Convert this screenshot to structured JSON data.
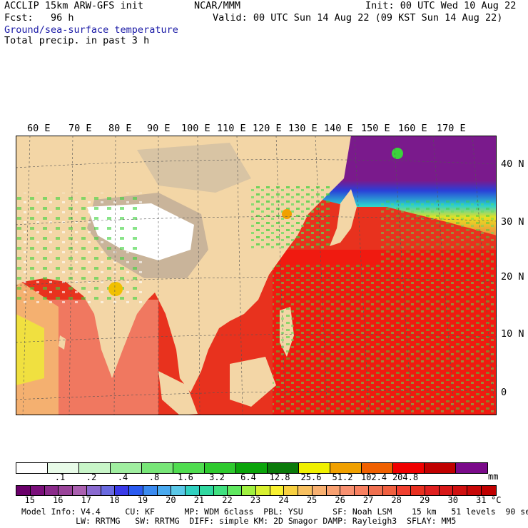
{
  "header": {
    "model": "ACCLIP 15km ARW-GFS init",
    "center": "NCAR/MMM",
    "init": "Init: 00 UTC Wed 10 Aug 22",
    "fcst": "Fcst:   96 h",
    "valid": "Valid: 00 UTC Sun 14 Aug 22 (09 KST Sun 14 Aug 22)",
    "field1": "Ground/sea-surface temperature",
    "field2": "Total precip. in past 3 h"
  },
  "map": {
    "lon_labels": [
      "60 E",
      "70 E",
      "80 E",
      "90 E",
      "100 E",
      "110 E",
      "120 E",
      "130 E",
      "140 E",
      "150 E",
      "160 E",
      "170 E"
    ],
    "lat_labels": [
      "40 N",
      "30 N",
      "20 N",
      "10 N",
      "0"
    ],
    "colors": {
      "land": "#f3d6a6",
      "desert": "#c9b49a",
      "snow": "#ffffff",
      "ocean_warm": "#e8321e",
      "ocean_hot": "#f01010",
      "ocean_cool": "#f08060",
      "rain": "#3bd23b",
      "cold_purple": "#7a1a8c",
      "cold_blue": "#2a3fd8",
      "cold_cyan": "#2ad0d0",
      "cold_yellow": "#e8e020"
    }
  },
  "precip_scale": {
    "ticks": [
      ".1",
      ".2",
      ".4",
      ".8",
      "1.6",
      "3.2",
      "6.4",
      "12.8",
      "25.6",
      "51.2",
      "102.4",
      "204.8"
    ],
    "unit": "mm",
    "colors": [
      "#ffffff",
      "#e8fbe8",
      "#c8f5c8",
      "#a0eea0",
      "#78e678",
      "#50dc50",
      "#2ec92e",
      "#0aa40a",
      "#0a7a0a",
      "#f0f000",
      "#f0a000",
      "#f06000",
      "#f00000",
      "#c00000",
      "#7a0a8a"
    ]
  },
  "temp_scale": {
    "ticks": [
      "15",
      "16",
      "17",
      "18",
      "19",
      "20",
      "21",
      "22",
      "23",
      "24",
      "25",
      "26",
      "27",
      "28",
      "29",
      "30",
      "31"
    ],
    "unit": "°C",
    "colors": [
      "#6a006a",
      "#7a0f7a",
      "#8a2a8a",
      "#9a449a",
      "#aa60b0",
      "#8a6ad0",
      "#6a6ae0",
      "#3a3ae8",
      "#2a5af0",
      "#3a8af0",
      "#4aaaf0",
      "#5ac8e8",
      "#30d0c0",
      "#30d8a0",
      "#40e080",
      "#60e860",
      "#a0f040",
      "#d8f030",
      "#f8f030",
      "#f8d040",
      "#f8c060",
      "#f8b070",
      "#f8a070",
      "#f89070",
      "#f88060",
      "#f07050",
      "#f06040",
      "#f04030",
      "#e83020",
      "#e02020",
      "#d81818",
      "#d01010",
      "#c80808",
      "#c00000"
    ]
  },
  "footer": {
    "line1": "Model Info: V4.4     CU: KF      MP: WDM 6class  PBL: YSU      SF: Noah LSM    15 km   51 levels  90 sec",
    "line2": "           LW: RRTMG   SW: RRTMG  DIFF: simple KM: 2D Smagor DAMP: Rayleigh3  SFLAY: MM5"
  }
}
